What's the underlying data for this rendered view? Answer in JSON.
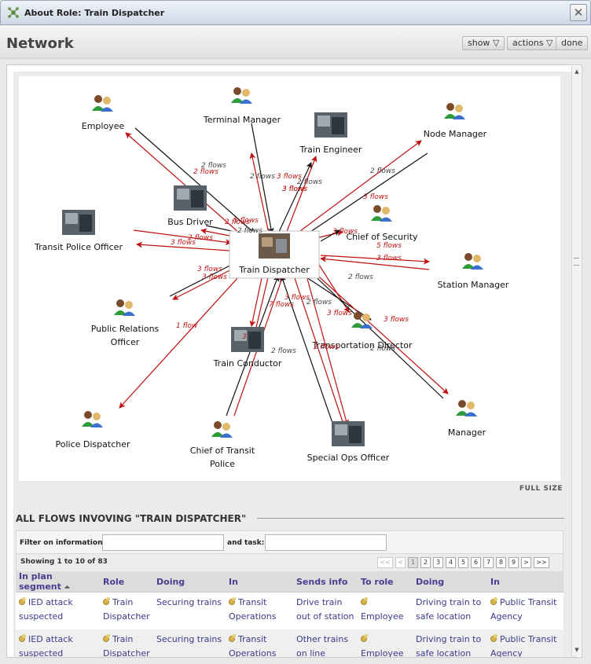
{
  "window": {
    "title": "About Role: Train Dispatcher",
    "close_glyph": "✕"
  },
  "header": {
    "title": "Network",
    "show_label": "show",
    "actions_label": "actions",
    "done_label": "done",
    "dropdown_glyph": "▽"
  },
  "network": {
    "full_size_label": "FULL SIZE",
    "nodes": [
      {
        "id": "train-dispatcher",
        "label": "Train Dispatcher",
        "kind": "photo"
      },
      {
        "id": "employee",
        "label": "Employee",
        "kind": "person"
      },
      {
        "id": "terminal-manager",
        "label": "Terminal Manager",
        "kind": "person"
      },
      {
        "id": "train-engineer",
        "label": "Train Engineer",
        "kind": "photo"
      },
      {
        "id": "node-manager",
        "label": "Node Manager",
        "kind": "person"
      },
      {
        "id": "bus-driver",
        "label": "Bus Driver",
        "kind": "photo"
      },
      {
        "id": "chief-of-security",
        "label": "Chief of Security",
        "kind": "person"
      },
      {
        "id": "transit-police-officer",
        "label": "Transit Police Officer",
        "kind": "photo"
      },
      {
        "id": "station-manager",
        "label": "Station Manager",
        "kind": "person"
      },
      {
        "id": "public-relations-officer",
        "label": "Public Relations Officer",
        "label_lines": [
          "Public Relations",
          "Officer"
        ],
        "kind": "person"
      },
      {
        "id": "transportation-director",
        "label": "Transportation Director",
        "kind": "person"
      },
      {
        "id": "train-conductor",
        "label": "Train Conductor",
        "kind": "photo"
      },
      {
        "id": "police-dispatcher",
        "label": "Police Dispatcher",
        "kind": "person"
      },
      {
        "id": "chief-of-transit-police",
        "label": "Chief of Transit Police",
        "label_lines": [
          "Chief of Transit",
          "Police"
        ],
        "kind": "person"
      },
      {
        "id": "special-ops-officer",
        "label": "Special Ops Officer",
        "kind": "photo"
      },
      {
        "id": "manager",
        "label": "Manager",
        "kind": "person"
      }
    ],
    "flow_labels": [
      {
        "text": "2 flows",
        "color": "black"
      },
      {
        "text": "2 flows",
        "color": "red"
      },
      {
        "text": "2 flows",
        "color": "black"
      },
      {
        "text": "3 flows",
        "color": "red"
      },
      {
        "text": "3 flows",
        "color": "red"
      },
      {
        "text": "2 flows",
        "color": "black"
      },
      {
        "text": "3 flows",
        "color": "red"
      },
      {
        "text": "2 flows",
        "color": "black"
      },
      {
        "text": "3 flows",
        "color": "red"
      },
      {
        "text": "2 flows",
        "color": "red"
      },
      {
        "text": "2 flows",
        "color": "black"
      },
      {
        "text": "2 flows",
        "color": "red"
      },
      {
        "text": "3 flows",
        "color": "red"
      },
      {
        "text": "5 flows",
        "color": "red"
      },
      {
        "text": "3 flows",
        "color": "red"
      },
      {
        "text": "5 flows",
        "color": "red"
      },
      {
        "text": "3 flows",
        "color": "red"
      },
      {
        "text": "2 flows",
        "color": "black"
      },
      {
        "text": "3 flows",
        "color": "red"
      },
      {
        "text": "3 flows",
        "color": "red"
      },
      {
        "text": "1 flow",
        "color": "red"
      },
      {
        "text": "3 flows",
        "color": "red"
      },
      {
        "text": "7 flows",
        "color": "red"
      },
      {
        "text": "2 flows",
        "color": "black"
      },
      {
        "text": "3 flows",
        "color": "red"
      },
      {
        "text": "3",
        "color": "red"
      },
      {
        "text": "2 flows",
        "color": "black"
      },
      {
        "text": "2 flows",
        "color": "red"
      },
      {
        "text": "2 flows",
        "color": "black"
      },
      {
        "text": "3 flows",
        "color": "red"
      }
    ],
    "colors": {
      "inbound": "#111111",
      "outbound": "#c01010"
    }
  },
  "flows": {
    "heading": "ALL FLOWS INVOVING \"TRAIN DISPATCHER\"",
    "filter_info_label": "Filter on information:",
    "filter_task_label": "and task:",
    "filter_info_value": "",
    "filter_task_value": "",
    "showing": "Showing 1 to 10 of 83",
    "pager": [
      "<<",
      "<",
      "1",
      "2",
      "3",
      "4",
      "5",
      "6",
      "7",
      "8",
      "9",
      ">",
      ">>"
    ],
    "columns": [
      "In plan segment",
      "Role",
      "Doing",
      "In",
      "Sends info",
      "To role",
      "Doing",
      "In"
    ],
    "sort_glyph": "⏶",
    "rows": [
      [
        "IED attack suspected",
        "Train Dispatcher",
        "Securing trains",
        "Transit Operations",
        "Drive train out of station",
        "Employee",
        "Driving train to safe location",
        "Public Transit Agency"
      ],
      [
        "IED attack suspected",
        "Train Dispatcher",
        "Securing trains",
        "Transit Operations",
        "Other trains on line",
        "Employee",
        "Driving train to safe location",
        "Public Transit Agency"
      ]
    ]
  }
}
